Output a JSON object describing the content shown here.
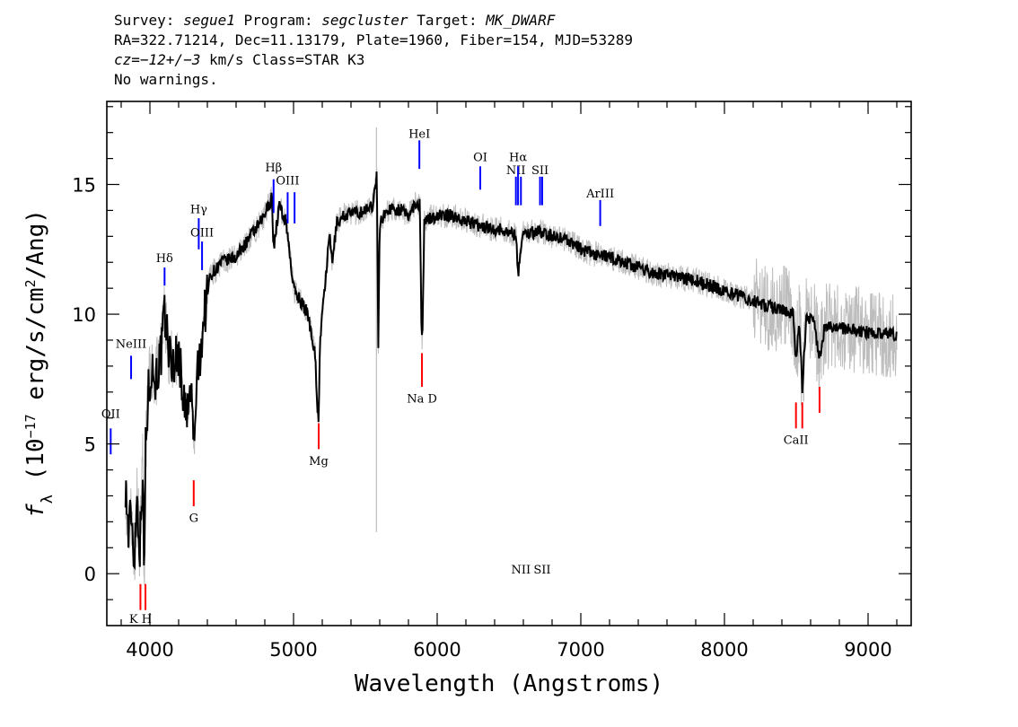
{
  "header": {
    "line1": {
      "survey_label": "Survey:",
      "survey": "segue1",
      "program_label": "Program:",
      "program": "segcluster",
      "target_label": "Target:",
      "target": "MK_DWARF"
    },
    "line2": "RA=322.71214, Dec=11.13179, Plate=1960, Fiber=154, MJD=53289",
    "line3": {
      "cz": "cz=−12+/−3",
      "unit": " km/s",
      "class": " Class=STAR K3"
    },
    "line4": "No warnings."
  },
  "chart_data": {
    "type": "line",
    "xlabel": "Wavelength (Angstroms)",
    "ylabel": "f_λ (10^-17 erg/s/cm^2/Ang)",
    "xlim": [
      3700,
      9300
    ],
    "ylim": [
      -2,
      18.2
    ],
    "xticks": [
      4000,
      5000,
      6000,
      7000,
      8000,
      9000
    ],
    "yticks": [
      0,
      5,
      10,
      15
    ],
    "grid": false,
    "series": [
      {
        "role": "model",
        "color": "#000000",
        "x": [
          3830,
          3850,
          3870,
          3890,
          3910,
          3930,
          3950,
          3960,
          3970,
          3990,
          4010,
          4040,
          4080,
          4100,
          4150,
          4200,
          4250,
          4290,
          4310,
          4320,
          4340,
          4380,
          4420,
          4500,
          4600,
          4700,
          4780,
          4850,
          4861,
          4900,
          4950,
          5000,
          5050,
          5100,
          5150,
          5165,
          5175,
          5185,
          5200,
          5250,
          5270,
          5300,
          5350,
          5400,
          5450,
          5500,
          5550,
          5580,
          5590,
          5600,
          5650,
          5700,
          5750,
          5800,
          5850,
          5880,
          5890,
          5896,
          5910,
          5950,
          6000,
          6100,
          6200,
          6300,
          6400,
          6500,
          6550,
          6563,
          6580,
          6600,
          6700,
          6800,
          6900,
          7000,
          7100,
          7200,
          7300,
          7400,
          7500,
          7600,
          7700,
          7800,
          7900,
          8000,
          8100,
          8200,
          8300,
          8400,
          8480,
          8498,
          8520,
          8542,
          8570,
          8620,
          8662,
          8700,
          8800,
          8900,
          9000,
          9100,
          9200
        ],
        "values": [
          3.5,
          1.5,
          2.5,
          0.5,
          3,
          1,
          4,
          -0.5,
          5,
          7,
          8,
          7.5,
          8.5,
          10,
          8,
          8.5,
          6,
          7,
          4.5,
          7,
          8,
          10,
          11.5,
          12,
          12.2,
          13,
          13.6,
          14.5,
          12.5,
          14.2,
          13.5,
          11,
          10.5,
          10,
          8.5,
          6.5,
          6,
          9,
          10,
          13,
          12,
          13.5,
          13.8,
          13.9,
          13.9,
          14,
          14.2,
          15.4,
          8.5,
          13.5,
          14,
          14.1,
          14,
          13.8,
          14.3,
          14.2,
          9.5,
          9,
          13.5,
          13.7,
          13.8,
          13.8,
          13.6,
          13.4,
          13.3,
          13.2,
          13,
          11.5,
          12.5,
          13.1,
          13.2,
          13,
          12.9,
          12.5,
          12.3,
          12.2,
          12,
          11.8,
          11.6,
          11.5,
          11.4,
          11.3,
          11.1,
          10.9,
          10.7,
          10.5,
          10.3,
          10.2,
          10,
          8.2,
          9.8,
          7.2,
          9.8,
          9.8,
          8.3,
          9.6,
          9.5,
          9.4,
          9.3,
          9.2,
          9.2
        ]
      },
      {
        "role": "data",
        "color": "#bdbdbd",
        "note": "noisy observed flux drawn around the model curve",
        "spikes": [
          {
            "x": 5577,
            "y_top": 17.2,
            "y_bottom": 1.6
          }
        ]
      }
    ],
    "emission_lines": [
      {
        "label": "OII",
        "x": 3727,
        "label_y": 6.0,
        "tick": [
          4.6,
          5.6
        ]
      },
      {
        "label": "NeIII",
        "x": 3869,
        "label_y": 8.7,
        "tick": [
          7.5,
          8.4
        ]
      },
      {
        "label": "Hδ",
        "x": 4102,
        "label_y": 12.0,
        "tick": [
          11.1,
          11.8
        ]
      },
      {
        "label": "Hγ",
        "x": 4340,
        "label_y": 13.9,
        "tick": [
          12.5,
          13.7
        ]
      },
      {
        "label": "OIII",
        "x": 4363,
        "label_y": 13.0,
        "tick": [
          11.7,
          12.8
        ]
      },
      {
        "label": "Hβ",
        "x": 4861,
        "label_y": 15.5,
        "tick": [
          13.9,
          15.2
        ]
      },
      {
        "label": "OIII",
        "x": 4959,
        "label_y": 15.0,
        "tick": [
          13.5,
          14.7
        ]
      },
      {
        "label": "",
        "x": 5007,
        "label_y": 0,
        "tick": [
          13.5,
          14.7
        ]
      },
      {
        "label": "HeI",
        "x": 5876,
        "label_y": 16.8,
        "tick": [
          15.6,
          16.7
        ]
      },
      {
        "label": "OI",
        "x": 6300,
        "label_y": 15.9,
        "tick": [
          14.8,
          15.7
        ]
      },
      {
        "label": "NII",
        "x": 6548,
        "label_y": 15.4,
        "tick": [
          14.2,
          15.3
        ]
      },
      {
        "label": "Hα",
        "x": 6563,
        "label_y": 15.9,
        "tick": [
          14.2,
          15.7
        ]
      },
      {
        "label": "NII",
        "x": 6583,
        "label_y": 0,
        "tick": [
          14.2,
          15.3
        ]
      },
      {
        "label": "SII",
        "x": 6716,
        "label_y": 15.4,
        "tick": [
          14.2,
          15.3
        ]
      },
      {
        "label": "SII",
        "x": 6731,
        "label_y": 0,
        "tick": [
          14.2,
          15.3
        ]
      },
      {
        "label": "ArIII",
        "x": 7135,
        "label_y": 14.5,
        "tick": [
          13.4,
          14.4
        ]
      }
    ],
    "absorption_lines": [
      {
        "label": "K H",
        "x": 3934,
        "label_y": -1.9,
        "tick": [
          -1.4,
          -0.4
        ]
      },
      {
        "label": "",
        "x": 3969,
        "label_y": 0,
        "tick": [
          -1.4,
          -0.4
        ]
      },
      {
        "label": "G",
        "x": 4305,
        "label_y": 2.0,
        "tick": [
          2.6,
          3.6
        ]
      },
      {
        "label": "Mg",
        "x": 5175,
        "label_y": 4.2,
        "tick": [
          4.8,
          5.8
        ]
      },
      {
        "label": "Na D",
        "x": 5894,
        "label_y": 6.6,
        "tick": [
          7.2,
          8.5
        ]
      },
      {
        "label": "CaII",
        "x": 8498,
        "label_y": 5.0,
        "tick": [
          5.6,
          6.6
        ]
      },
      {
        "label": "",
        "x": 8542,
        "label_y": 0,
        "tick": [
          5.6,
          6.6
        ]
      },
      {
        "label": "",
        "x": 8662,
        "label_y": 0,
        "tick": [
          6.2,
          7.2
        ]
      }
    ],
    "emission_color": "#0000ff",
    "absorption_color": "#ff0000"
  }
}
